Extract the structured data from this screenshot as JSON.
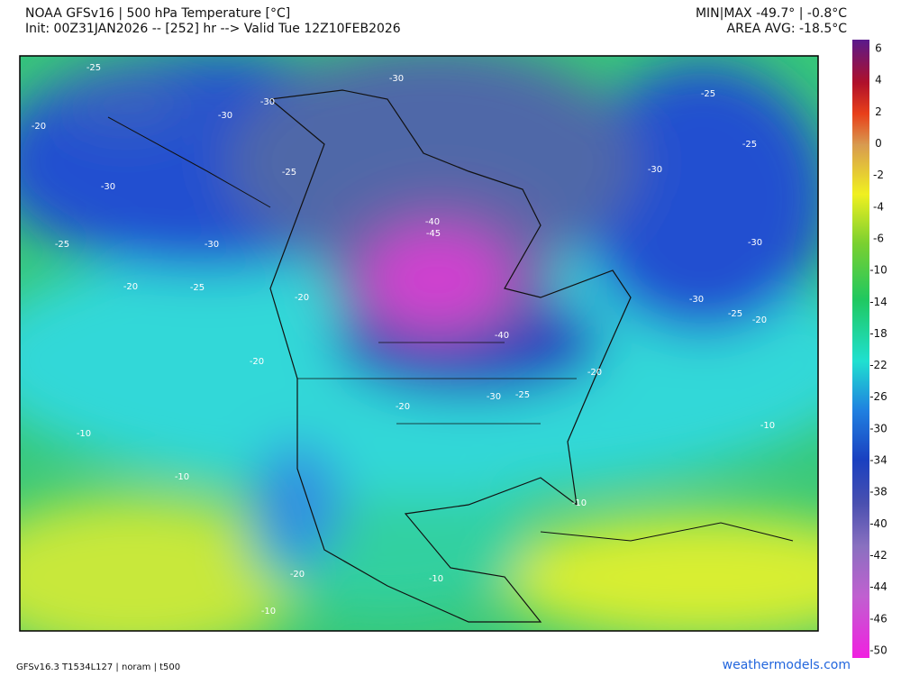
{
  "header": {
    "title": "NOAA GFSv16 | 500 hPa Temperature [°C]",
    "subtitle": "Init: 00Z31JAN2026 -- [252] hr --> Valid Tue 12Z10FEB2026",
    "minmax": "MIN|MAX -49.7° | -0.8°C",
    "area_avg": "AREA AVG: -18.5°C"
  },
  "colorbar": {
    "labels": [
      6,
      4,
      2,
      0,
      -2,
      -4,
      -6,
      -10,
      -14,
      -18,
      -22,
      -26,
      -30,
      -34,
      -38,
      -40,
      -42,
      -44,
      -46,
      -50
    ]
  },
  "contour_labels": [
    -25,
    -30,
    -25,
    -30,
    -30,
    -20,
    -25,
    -25,
    -30,
    -30,
    -40,
    -45,
    -25,
    -30,
    -30,
    -20,
    -25,
    -20,
    -30,
    -25,
    -20,
    -40,
    -20,
    -20,
    -30,
    -25,
    -20,
    -10,
    -10,
    -10,
    -10,
    -20,
    -10,
    -10
  ],
  "footer": {
    "model": "GFSv16.3 T1534L127 | noram | t500",
    "site": "weathermodels.com"
  }
}
